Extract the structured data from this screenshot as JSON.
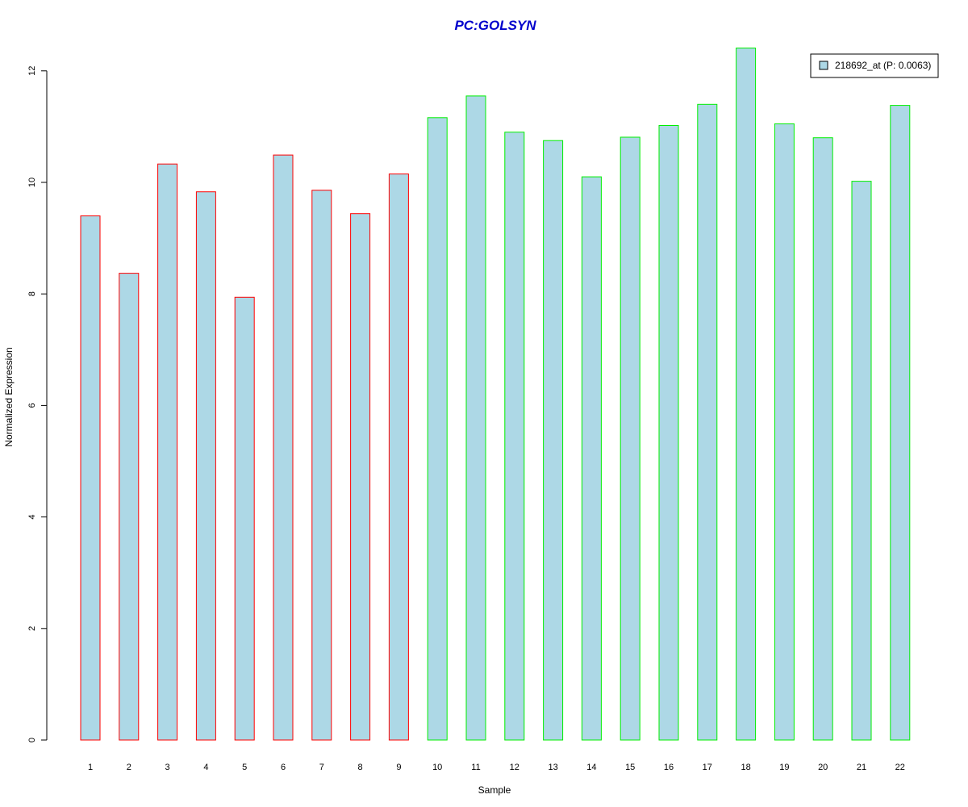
{
  "chart_data": {
    "type": "bar",
    "title": "PC:GOLSYN",
    "title_color": "#0000cc",
    "xlabel": "Sample",
    "ylabel": "Normalized Expression",
    "ylim": [
      0,
      12.4
    ],
    "yticks": [
      0,
      2,
      4,
      6,
      8,
      10,
      12
    ],
    "grid": false,
    "legend_position": "top-right",
    "bar_fill": "#add8e6",
    "categories": [
      "1",
      "2",
      "3",
      "4",
      "5",
      "6",
      "7",
      "8",
      "9",
      "10",
      "11",
      "12",
      "13",
      "14",
      "15",
      "16",
      "17",
      "18",
      "19",
      "20",
      "21",
      "22"
    ],
    "series": [
      {
        "name": "218692_at (P: 0.0063)",
        "values": [
          9.4,
          8.37,
          10.33,
          9.83,
          7.94,
          10.49,
          9.86,
          9.44,
          10.15,
          11.16,
          11.55,
          10.9,
          10.75,
          10.1,
          10.81,
          11.02,
          11.4,
          12.41,
          11.05,
          10.8,
          10.02,
          11.38
        ]
      }
    ],
    "groups": [
      {
        "color": "#ff0000",
        "samples": [
          "1",
          "2",
          "3",
          "4",
          "5",
          "6",
          "7",
          "8",
          "9"
        ]
      },
      {
        "color": "#00ee00",
        "samples": [
          "10",
          "11",
          "12",
          "13",
          "14",
          "15",
          "16",
          "17",
          "18",
          "19",
          "20",
          "21",
          "22"
        ]
      }
    ]
  }
}
